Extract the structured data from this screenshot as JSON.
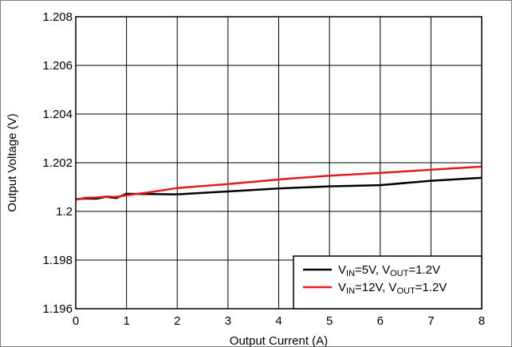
{
  "chart_data": {
    "type": "line",
    "title": "",
    "xlabel": "Output Current (A)",
    "ylabel": "Output Voltage (V)",
    "xlim": [
      0,
      8
    ],
    "ylim": [
      1.196,
      1.208
    ],
    "x_ticks": [
      0,
      1,
      2,
      3,
      4,
      5,
      6,
      7,
      8
    ],
    "x_tick_labels": [
      "0",
      "1",
      "2",
      "3",
      "4",
      "5",
      "6",
      "7",
      "8"
    ],
    "y_ticks": [
      1.196,
      1.198,
      1.2,
      1.202,
      1.204,
      1.206,
      1.208
    ],
    "y_tick_labels": [
      "1.196",
      "1.198",
      "1.2",
      "1.202",
      "1.204",
      "1.206",
      "1.208"
    ],
    "grid": true,
    "legend_position": "bottom-right",
    "series": [
      {
        "name": "VIN=5V, VOUT=1.2V",
        "legend": {
          "v1": "V",
          "sub1": "IN",
          "mid": "=5V, V",
          "sub2": "OUT",
          "end": "=1.2V"
        },
        "color": "#000000",
        "x": [
          0,
          0.2,
          0.4,
          0.6,
          0.8,
          1.0,
          1.5,
          2,
          3,
          4,
          5,
          6,
          7,
          8
        ],
        "y": [
          1.2005,
          1.20053,
          1.20052,
          1.2006,
          1.20055,
          1.20072,
          1.20071,
          1.2007,
          1.20082,
          1.20094,
          1.20103,
          1.20108,
          1.20126,
          1.20138
        ]
      },
      {
        "name": "VIN=12V, VOUT=1.2V",
        "legend": {
          "v1": "V",
          "sub1": "IN",
          "mid": "=12V, V",
          "sub2": "OUT",
          "end": "=1.2V"
        },
        "color": "#e41a1c",
        "x": [
          0,
          0.2,
          0.4,
          0.6,
          0.8,
          1.0,
          1.5,
          2,
          3,
          4,
          5,
          6,
          7,
          8
        ],
        "y": [
          1.20048,
          1.20056,
          1.20057,
          1.20061,
          1.2006,
          1.20066,
          1.2008,
          1.20096,
          1.20112,
          1.20131,
          1.20147,
          1.20158,
          1.20171,
          1.20184
        ]
      }
    ]
  }
}
